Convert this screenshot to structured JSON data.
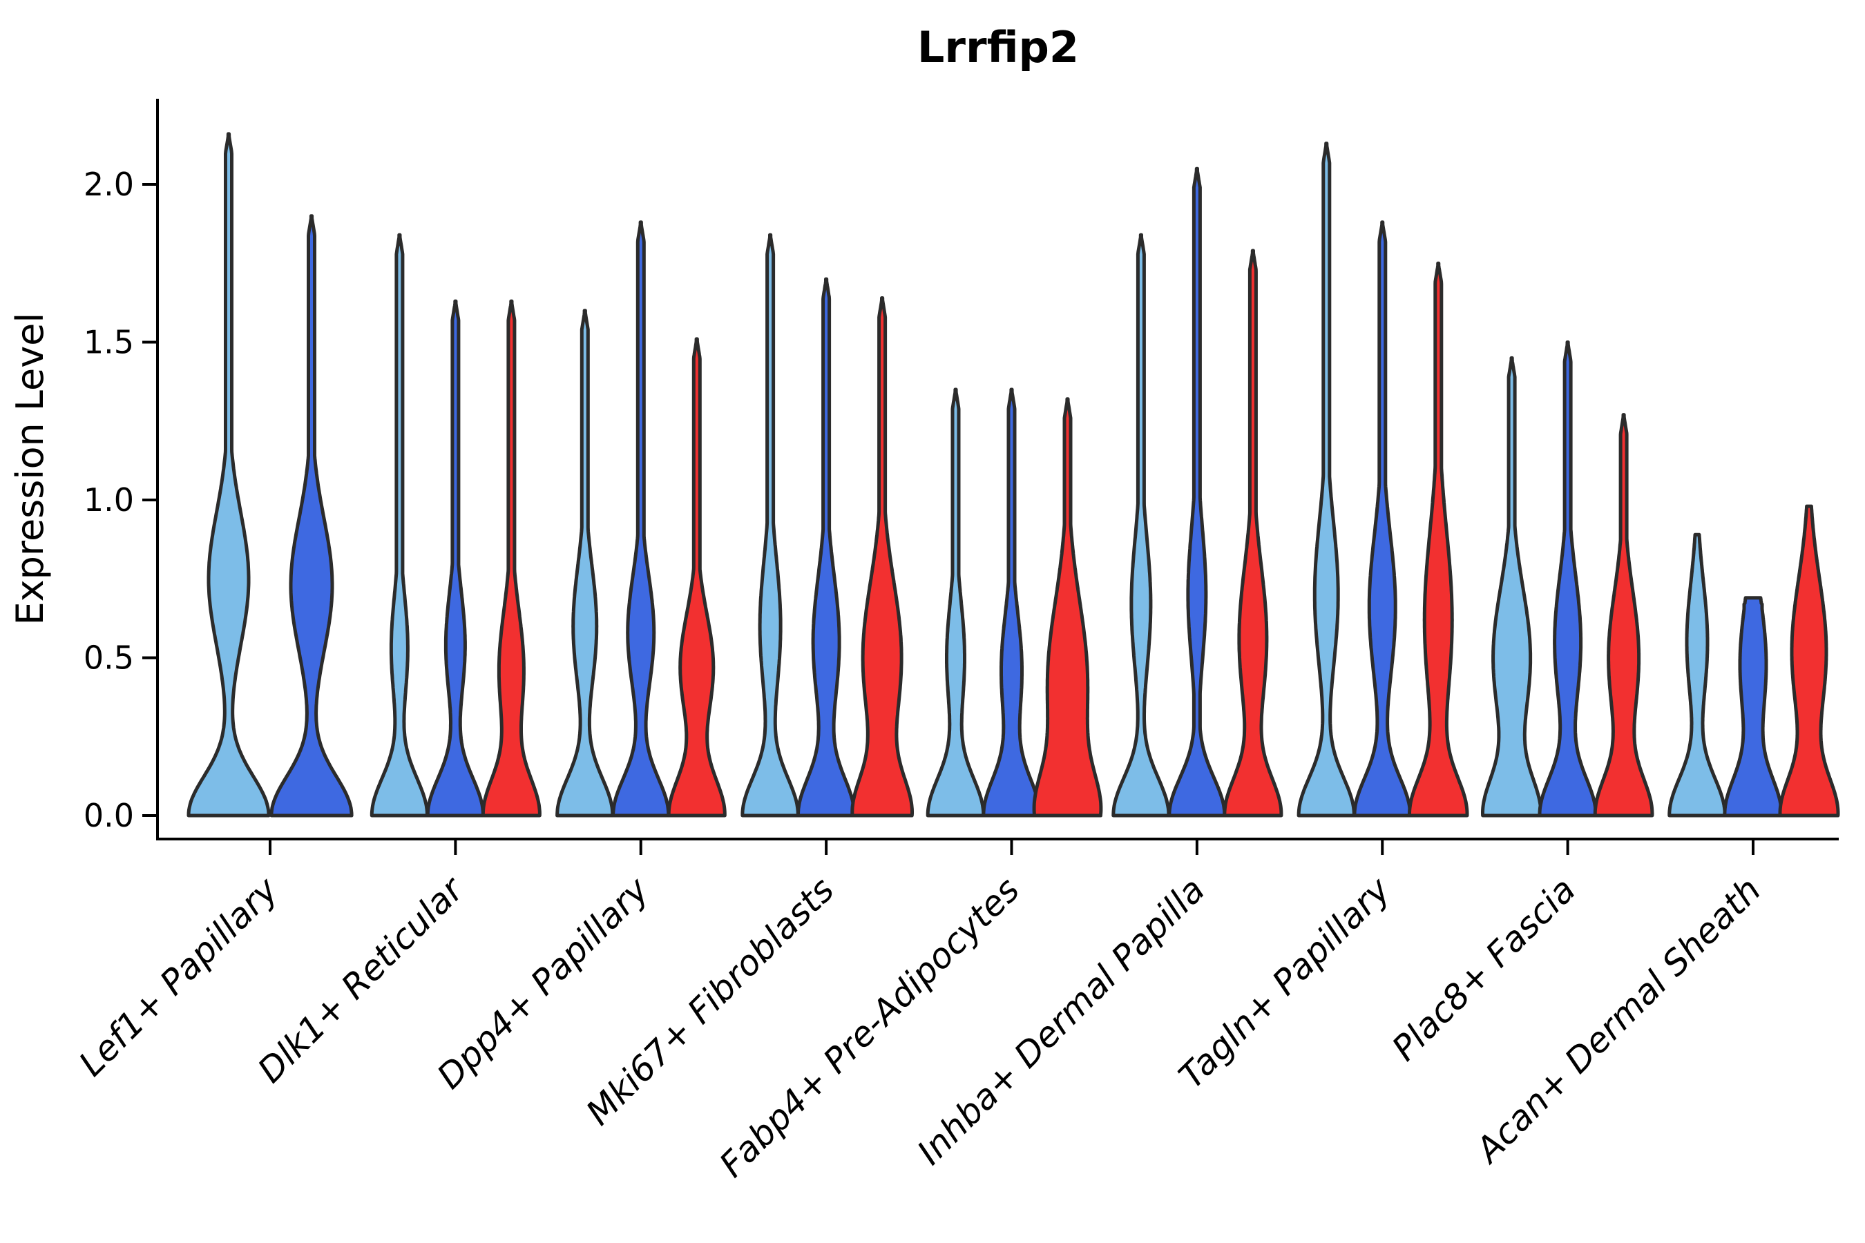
{
  "title": "Lrrfip2",
  "axes": {
    "ylabel": "Expression Level",
    "ytick_labels": [
      "0.0",
      "0.5",
      "1.0",
      "1.5",
      "2.0"
    ],
    "ytick_values": [
      0,
      0.5,
      1.0,
      1.5,
      2.0
    ]
  },
  "colors": {
    "light_blue": "#7DBDE8",
    "royal_blue": "#3E69E1",
    "red": "#F23030",
    "violin_edge": "#2B2B2B",
    "axis": "#000000"
  },
  "chart_data": {
    "type": "violin",
    "title": "Lrrfip2",
    "xlabel": "",
    "ylabel": "Expression Level",
    "ylim": [
      0,
      2.27
    ],
    "grid": false,
    "legend": "none",
    "series_colors": [
      "#7DBDE8",
      "#3E69E1",
      "#F23030"
    ],
    "series_names": [
      "light_blue",
      "royal_blue",
      "red"
    ],
    "categories": [
      "Lef1+ Papillary",
      "Dlk1+ Reticular",
      "Dpp4+ Papillary",
      "Mki67+ Fibroblasts",
      "Fabp4+ Pre-Adipocytes",
      "Inhba+ Dermal Papilla",
      "Tagln+ Papillary",
      "Plac8+ Fascia",
      "Acan+ Dermal Sheath"
    ],
    "groups": [
      {
        "category": "Lef1+ Papillary",
        "violins": [
          {
            "series": 0,
            "offset": -60,
            "max": 2.16,
            "bulge_center": 0.75,
            "bulge_hw": 29,
            "bulge_sigma": 0.21,
            "base_hw": 58,
            "base_sigma": 0.125,
            "tip_hw": 4.5,
            "taper": 0.06
          },
          {
            "series": 1,
            "offset": 60,
            "max": 1.9,
            "bulge_center": 0.73,
            "bulge_hw": 30,
            "bulge_sigma": 0.21,
            "base_hw": 58,
            "base_sigma": 0.125,
            "tip_hw": 4.5,
            "taper": 0.06
          }
        ]
      },
      {
        "category": "Dlk1+ Reticular",
        "violins": [
          {
            "series": 0,
            "offset": -81,
            "max": 1.84,
            "bulge_center": 0.53,
            "bulge_hw": 12,
            "bulge_sigma": 0.17,
            "base_hw": 40,
            "base_sigma": 0.12,
            "tip_hw": 4.5,
            "taper": 0.06
          },
          {
            "series": 1,
            "offset": 0,
            "max": 1.63,
            "bulge_center": 0.54,
            "bulge_hw": 14,
            "bulge_sigma": 0.17,
            "base_hw": 40,
            "base_sigma": 0.12,
            "tip_hw": 4.5,
            "taper": 0.06
          },
          {
            "series": 2,
            "offset": 81,
            "max": 1.63,
            "bulge_center": 0.46,
            "bulge_hw": 18,
            "bulge_sigma": 0.19,
            "base_hw": 40,
            "base_sigma": 0.12,
            "tip_hw": 4.5,
            "taper": 0.06
          }
        ]
      },
      {
        "category": "Dpp4+ Papillary",
        "violins": [
          {
            "series": 0,
            "offset": -81,
            "max": 1.6,
            "bulge_center": 0.6,
            "bulge_hw": 17,
            "bulge_sigma": 0.19,
            "base_hw": 40,
            "base_sigma": 0.12,
            "tip_hw": 4.5,
            "taper": 0.06
          },
          {
            "series": 1,
            "offset": 0,
            "max": 1.88,
            "bulge_center": 0.58,
            "bulge_hw": 19,
            "bulge_sigma": 0.18,
            "base_hw": 40,
            "base_sigma": 0.12,
            "tip_hw": 4.5,
            "taper": 0.06
          },
          {
            "series": 2,
            "offset": 81,
            "max": 1.51,
            "bulge_center": 0.47,
            "bulge_hw": 24,
            "bulge_sigma": 0.17,
            "base_hw": 40,
            "base_sigma": 0.12,
            "tip_hw": 4.5,
            "taper": 0.06
          }
        ]
      },
      {
        "category": "Mki67+ Fibroblasts",
        "violins": [
          {
            "series": 0,
            "offset": -81,
            "max": 1.84,
            "bulge_center": 0.6,
            "bulge_hw": 15,
            "bulge_sigma": 0.21,
            "base_hw": 40,
            "base_sigma": 0.12,
            "tip_hw": 4.5,
            "taper": 0.06
          },
          {
            "series": 1,
            "offset": 0,
            "max": 1.7,
            "bulge_center": 0.55,
            "bulge_hw": 19,
            "bulge_sigma": 0.21,
            "base_hw": 40,
            "base_sigma": 0.12,
            "tip_hw": 4.5,
            "taper": 0.06
          },
          {
            "series": 2,
            "offset": 81,
            "max": 1.64,
            "bulge_center": 0.5,
            "bulge_hw": 28,
            "bulge_sigma": 0.24,
            "base_hw": 40,
            "base_sigma": 0.12,
            "tip_hw": 4.5,
            "taper": 0.06
          }
        ]
      },
      {
        "category": "Fabp4+ Pre-Adipocytes",
        "violins": [
          {
            "series": 0,
            "offset": -81,
            "max": 1.35,
            "bulge_center": 0.5,
            "bulge_hw": 13,
            "bulge_sigma": 0.18,
            "base_hw": 40,
            "base_sigma": 0.12,
            "tip_hw": 4.5,
            "taper": 0.06
          },
          {
            "series": 1,
            "offset": 0,
            "max": 1.35,
            "bulge_center": 0.46,
            "bulge_hw": 15,
            "bulge_sigma": 0.18,
            "base_hw": 40,
            "base_sigma": 0.12,
            "tip_hw": 4.5,
            "taper": 0.06
          },
          {
            "series": 2,
            "offset": 81,
            "max": 1.32,
            "bulge_center": 0.42,
            "bulge_hw": 29,
            "bulge_sigma": 0.26,
            "base_hw": 40,
            "base_sigma": 0.13,
            "tip_hw": 4.5,
            "taper": 0.06
          }
        ]
      },
      {
        "category": "Inhba+ Dermal Papilla",
        "violins": [
          {
            "series": 0,
            "offset": -81,
            "max": 1.84,
            "bulge_center": 0.67,
            "bulge_hw": 14,
            "bulge_sigma": 0.21,
            "base_hw": 40,
            "base_sigma": 0.12,
            "tip_hw": 4.5,
            "taper": 0.06
          },
          {
            "series": 1,
            "offset": 0,
            "max": 2.05,
            "bulge_center": 0.7,
            "bulge_hw": 13,
            "bulge_sigma": 0.21,
            "base_hw": 40,
            "base_sigma": 0.12,
            "tip_hw": 4.5,
            "taper": 0.06
          },
          {
            "series": 2,
            "offset": 81,
            "max": 1.79,
            "bulge_center": 0.56,
            "bulge_hw": 20,
            "bulge_sigma": 0.23,
            "base_hw": 40,
            "base_sigma": 0.12,
            "tip_hw": 4.5,
            "taper": 0.06
          }
        ]
      },
      {
        "category": "Tagln+ Papillary",
        "violins": [
          {
            "series": 0,
            "offset": -81,
            "max": 2.13,
            "bulge_center": 0.7,
            "bulge_hw": 17,
            "bulge_sigma": 0.23,
            "base_hw": 40,
            "base_sigma": 0.12,
            "tip_hw": 4.5,
            "taper": 0.06
          },
          {
            "series": 1,
            "offset": 0,
            "max": 1.88,
            "bulge_center": 0.66,
            "bulge_hw": 19,
            "bulge_sigma": 0.23,
            "base_hw": 40,
            "base_sigma": 0.12,
            "tip_hw": 4.5,
            "taper": 0.06
          },
          {
            "series": 2,
            "offset": 81,
            "max": 1.75,
            "bulge_center": 0.62,
            "bulge_hw": 20,
            "bulge_sigma": 0.28,
            "base_hw": 40,
            "base_sigma": 0.12,
            "tip_hw": 4.5,
            "taper": 0.06
          }
        ]
      },
      {
        "category": "Plac8+ Fascia",
        "violins": [
          {
            "series": 0,
            "offset": -81,
            "max": 1.45,
            "bulge_center": 0.5,
            "bulge_hw": 27,
            "bulge_sigma": 0.22,
            "base_hw": 40,
            "base_sigma": 0.12,
            "tip_hw": 4.5,
            "taper": 0.06
          },
          {
            "series": 1,
            "offset": 0,
            "max": 1.5,
            "bulge_center": 0.55,
            "bulge_hw": 19,
            "bulge_sigma": 0.21,
            "base_hw": 40,
            "base_sigma": 0.12,
            "tip_hw": 4.5,
            "taper": 0.06
          },
          {
            "series": 2,
            "offset": 81,
            "max": 1.27,
            "bulge_center": 0.5,
            "bulge_hw": 22,
            "bulge_sigma": 0.21,
            "base_hw": 40,
            "base_sigma": 0.12,
            "tip_hw": 4.5,
            "taper": 0.06
          }
        ]
      },
      {
        "category": "Acan+ Dermal Sheath",
        "violins": [
          {
            "series": 0,
            "offset": -81,
            "max": 0.89,
            "bulge_center": 0.55,
            "bulge_hw": 15,
            "bulge_sigma": 0.19,
            "base_hw": 40,
            "base_sigma": 0.12,
            "tip_hw": 4.5,
            "taper": 0.1
          },
          {
            "series": 1,
            "offset": 0,
            "max": 0.69,
            "bulge_center": 0.48,
            "bulge_hw": 19,
            "bulge_sigma": 0.2,
            "base_hw": 40,
            "base_sigma": 0.12,
            "tip_hw": 13,
            "taper": 0.02
          },
          {
            "series": 2,
            "offset": 81,
            "max": 0.98,
            "bulge_center": 0.52,
            "bulge_hw": 25,
            "bulge_sigma": 0.23,
            "base_hw": 40,
            "base_sigma": 0.12,
            "tip_hw": 4.5,
            "taper": 0.12
          }
        ]
      }
    ]
  }
}
